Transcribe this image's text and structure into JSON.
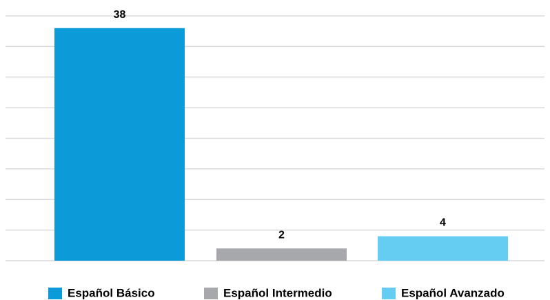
{
  "chart_data": {
    "type": "bar",
    "categories": [
      "Español Básico",
      "Español Intermedio",
      "Español Avanzado"
    ],
    "values": [
      38,
      2,
      4
    ],
    "colors": [
      "#0b9bd9",
      "#a7a8ab",
      "#66cdf2"
    ],
    "ylim": [
      0,
      40
    ],
    "yticks": [
      0,
      5,
      10,
      15,
      20,
      25,
      30,
      35,
      40
    ],
    "grid": true,
    "legend": "bottom"
  }
}
